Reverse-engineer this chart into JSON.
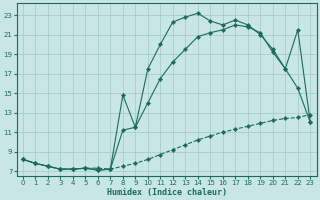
{
  "xlabel": "Humidex (Indice chaleur)",
  "bg_color": "#c8e6e6",
  "grid_color": "#a8cccc",
  "line_color": "#1a6b5a",
  "xlim": [
    -0.5,
    23.5
  ],
  "ylim": [
    6.5,
    24.2
  ],
  "xticks": [
    0,
    1,
    2,
    3,
    4,
    5,
    6,
    7,
    8,
    9,
    10,
    11,
    12,
    13,
    14,
    15,
    16,
    17,
    18,
    19,
    20,
    21,
    22,
    23
  ],
  "yticks": [
    7,
    9,
    11,
    13,
    15,
    17,
    19,
    21,
    23
  ],
  "curve1_x": [
    0,
    1,
    2,
    3,
    4,
    5,
    6,
    7,
    8,
    9,
    10,
    11,
    12,
    13,
    14,
    15,
    16,
    17,
    18,
    19,
    20,
    21,
    22,
    23
  ],
  "curve1_y": [
    8.2,
    7.8,
    7.5,
    7.2,
    7.2,
    7.3,
    7.3,
    7.2,
    7.5,
    7.8,
    8.2,
    8.7,
    9.2,
    9.7,
    10.2,
    10.6,
    11.0,
    11.3,
    11.6,
    11.9,
    12.2,
    12.4,
    12.5,
    12.8
  ],
  "curve2_x": [
    0,
    1,
    2,
    3,
    4,
    5,
    6,
    7,
    8,
    9,
    10,
    11,
    12,
    13,
    14,
    15,
    16,
    17,
    18,
    19,
    20,
    21,
    22,
    23
  ],
  "curve2_y": [
    8.2,
    7.8,
    7.5,
    7.2,
    7.2,
    7.3,
    7.1,
    7.2,
    11.2,
    11.5,
    14.0,
    16.5,
    18.2,
    19.5,
    20.8,
    21.2,
    21.5,
    22.0,
    21.8,
    21.2,
    19.2,
    17.5,
    15.5,
    12.0
  ],
  "curve3_x": [
    0,
    1,
    2,
    3,
    4,
    5,
    6,
    7,
    8,
    9,
    10,
    11,
    12,
    13,
    14,
    15,
    16,
    17,
    18,
    19,
    20,
    21,
    22,
    23
  ],
  "curve3_y": [
    8.2,
    7.8,
    7.5,
    7.2,
    7.2,
    7.3,
    7.1,
    7.2,
    14.8,
    11.5,
    17.5,
    20.0,
    22.3,
    22.8,
    23.2,
    22.4,
    22.0,
    22.5,
    22.0,
    21.0,
    19.5,
    17.5,
    21.5,
    12.0
  ]
}
